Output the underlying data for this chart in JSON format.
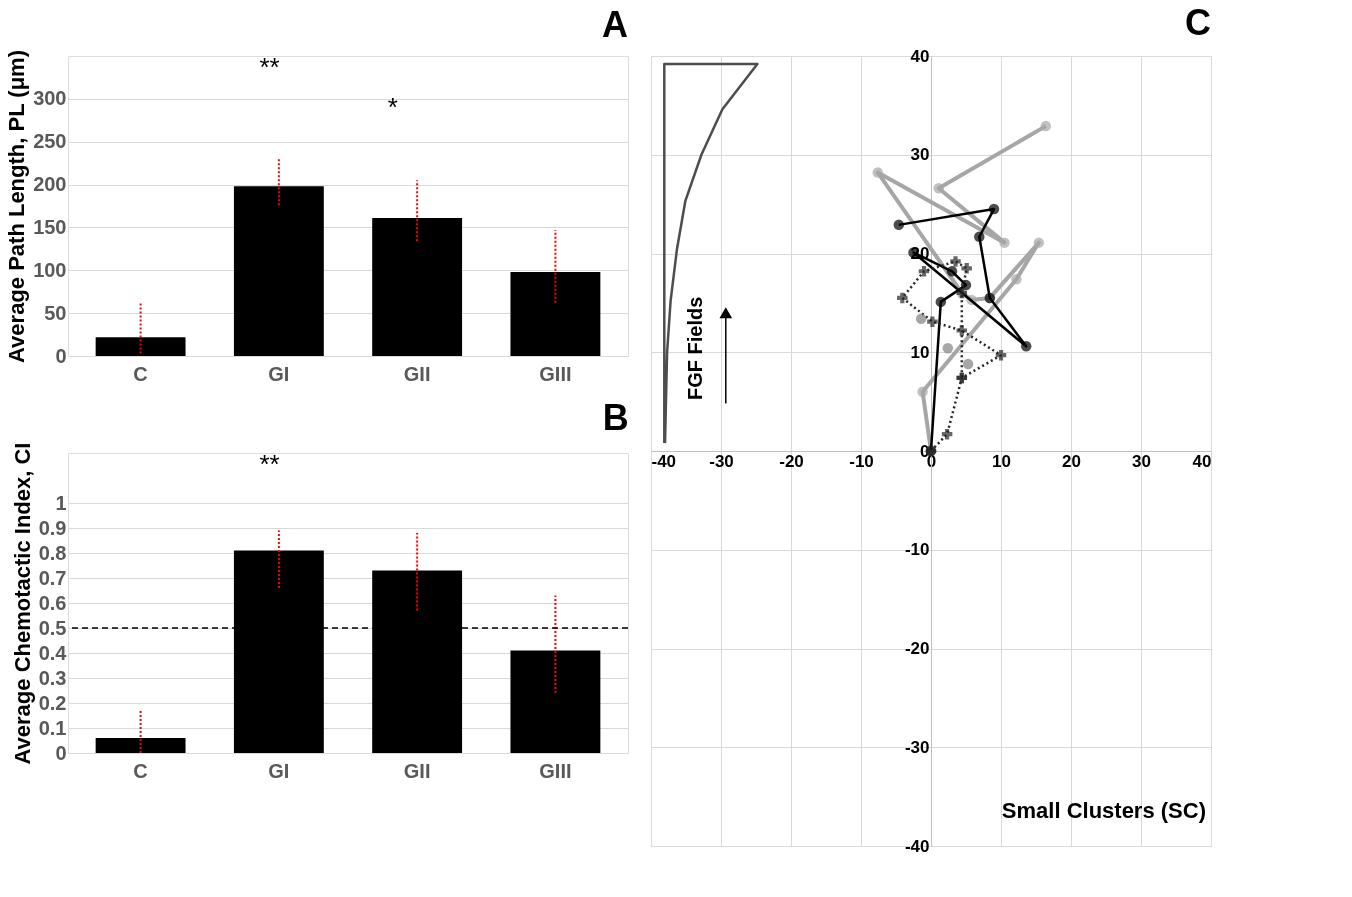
{
  "chart_data": [
    {
      "type": "bar",
      "title": "A",
      "ylabel": "Average Path Length, PL (μm)",
      "categories": [
        "C",
        "GI",
        "GII",
        "GIII"
      ],
      "values": [
        22,
        198,
        161,
        98
      ],
      "color": "#000000",
      "errors": [
        [
          3,
          62
        ],
        [
          176,
          232
        ],
        [
          134,
          205
        ],
        [
          62,
          147
        ]
      ],
      "ylim": [
        0,
        350
      ],
      "yticks": [
        0,
        50,
        100,
        150,
        200,
        250,
        300
      ],
      "grid": "y",
      "annotations": [
        "**",
        "*"
      ]
    },
    {
      "type": "bar",
      "title": "B",
      "ylabel": "Average Chemotactic Index, CI",
      "categories": [
        "C",
        "GI",
        "GII",
        "GIII"
      ],
      "values": [
        0.06,
        0.81,
        0.73,
        0.41
      ],
      "color": "#000000",
      "errors": [
        [
          0,
          0.17
        ],
        [
          0.66,
          0.89
        ],
        [
          0.57,
          0.88
        ],
        [
          0.24,
          0.63
        ]
      ],
      "ylim": [
        0,
        1.2
      ],
      "yticks": [
        0,
        0.1,
        0.2,
        0.3,
        0.4,
        0.5,
        0.6,
        0.7,
        0.8,
        0.9,
        1
      ],
      "grid": "y",
      "ref_lines": [
        {
          "axis": "y",
          "value": 0.5,
          "label": null,
          "color": "#000000",
          "line_style": "dashed"
        }
      ],
      "annotations": [
        "**"
      ]
    },
    {
      "type": "line",
      "title": "C",
      "xlabel": "Small Clusters (SC)",
      "ylabel": "FGF Fields",
      "xlim": [
        -40,
        40
      ],
      "xticks": [
        -40,
        -30,
        -20,
        -10,
        0,
        10,
        20,
        30,
        40
      ],
      "ylim": [
        -40,
        40
      ],
      "yticks": [
        -40,
        -30,
        -20,
        -10,
        0,
        10,
        20,
        30,
        40
      ],
      "grid": true,
      "series": [
        {
          "type": "line",
          "color": "#4d4d4d",
          "marker": "none",
          "line_style": "solid",
          "x": [
            -38.1,
            -38.1,
            -24.8,
            -29.8,
            -32.8,
            -35.1,
            -36.3,
            -37.2,
            -37.7,
            -38.0
          ],
          "values": [
            0.8,
            39.2,
            39.2,
            34.6,
            30.0,
            25.3,
            20.4,
            15.2,
            10.0,
            0.8
          ]
        },
        {
          "type": "line",
          "color": "#a6a6a6",
          "marker": "circle",
          "line_style": "solid",
          "x": [
            0,
            -1.2,
            12.2,
            15.4,
            8.4,
            5.8,
            4.4,
            -7.6,
            10.5,
            1.1,
            16.4
          ],
          "values": [
            0,
            6.0,
            17.4,
            21.1,
            15.5,
            15.3,
            16.0,
            28.2,
            21.1,
            26.6,
            32.9
          ]
        },
        {
          "type": "line",
          "color": "#000000",
          "marker": "circle",
          "line_style": "solid",
          "x": [
            0,
            1.4,
            5.0,
            3.0,
            -2.5,
            13.6,
            8.4,
            6.9,
            9.0,
            -4.6
          ],
          "values": [
            0,
            15.1,
            16.8,
            18.2,
            20.1,
            10.6,
            15.5,
            21.7,
            24.5,
            22.9
          ]
        },
        {
          "type": "line",
          "color": "#262626",
          "marker": "cross",
          "line_style": "dotted",
          "x": [
            0,
            2.3,
            4.4,
            10.0,
            4.4,
            0.2,
            -4.1,
            -1.0,
            3.5,
            5.1,
            4.4,
            4.4
          ],
          "values": [
            0,
            1.7,
            7.4,
            9.7,
            12.2,
            13.1,
            15.5,
            18.2,
            19.2,
            18.5,
            16.0,
            7.4
          ]
        },
        {
          "type": "scatter",
          "color": "#808080",
          "marker": "circle",
          "x": [
            -1.4,
            2.4,
            5.3
          ],
          "values": [
            13.4,
            10.4,
            8.8
          ]
        }
      ]
    }
  ]
}
